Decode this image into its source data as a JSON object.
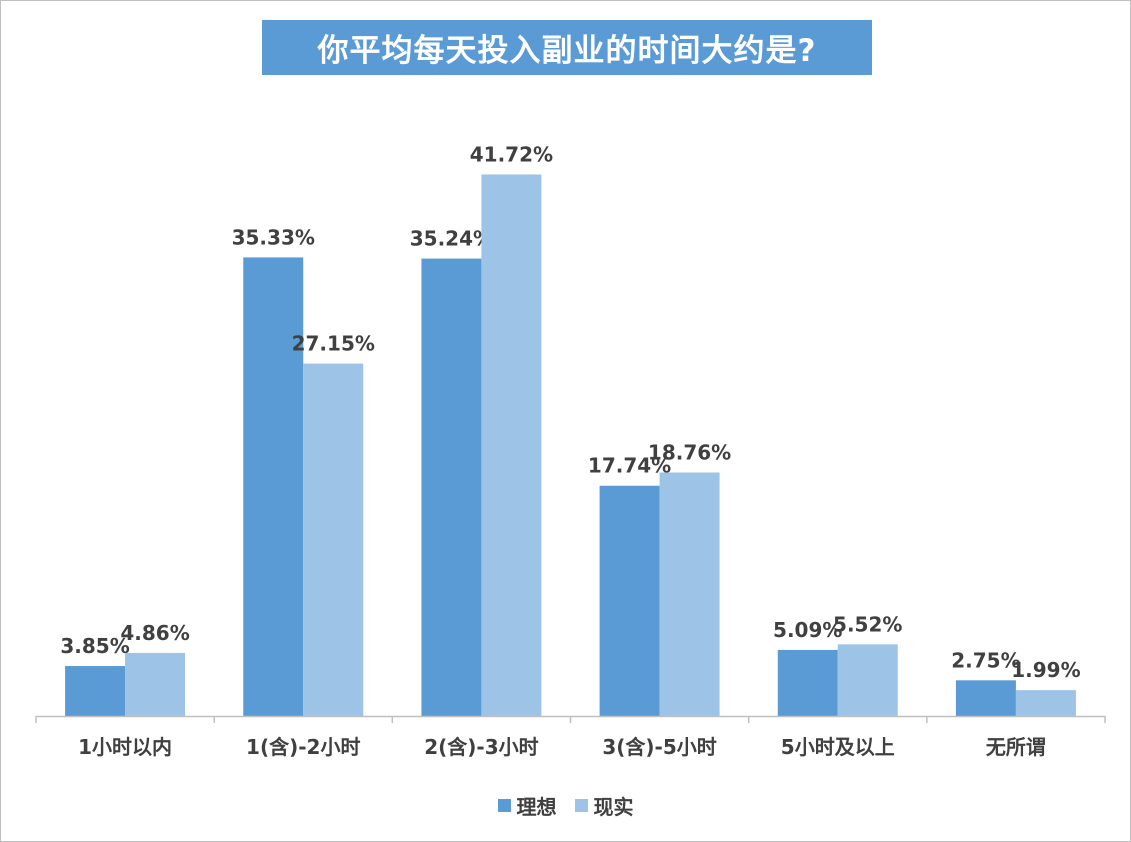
{
  "chart_data": {
    "type": "bar",
    "title": "你平均每天投入副业的时间大约是?",
    "categories": [
      "1小时以内",
      "1(含)-2小时",
      "2(含)-3小时",
      "3(含)-5小时",
      "5小时及以上",
      "无所谓"
    ],
    "series": [
      {
        "name": "理想",
        "color": "#5b9bd5",
        "values": [
          3.85,
          35.33,
          35.24,
          17.74,
          5.09,
          2.75
        ]
      },
      {
        "name": "现实",
        "color": "#9dc3e6",
        "values": [
          4.86,
          27.15,
          41.72,
          18.76,
          5.52,
          1.99
        ]
      }
    ],
    "value_suffix": "%",
    "ylim": [
      0,
      50
    ],
    "grid": false,
    "legend_position": "bottom"
  }
}
